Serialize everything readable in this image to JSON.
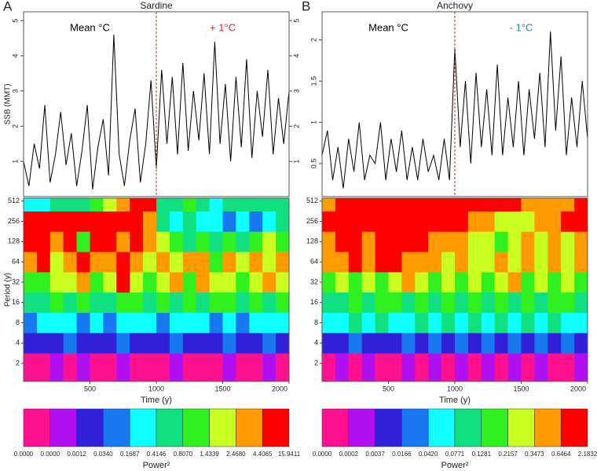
{
  "chart_data": [
    {
      "type": "line",
      "panel": "A",
      "title": "Sardine",
      "ylabel": "SSB (MMT)",
      "color": "#000000",
      "shift_x": 1000,
      "shift_color": "#d02020",
      "mirror_ticks": true,
      "annotations": [
        {
          "text": "Mean °C",
          "color": "#000000"
        },
        {
          "text": "+ 1°C",
          "color": "#e02020"
        }
      ],
      "xlim": [
        0,
        2000
      ],
      "ylim": [
        0,
        5.25
      ],
      "yticks": [
        1,
        2,
        3,
        4,
        5
      ],
      "x": [
        0,
        40,
        80,
        120,
        160,
        200,
        240,
        280,
        320,
        360,
        400,
        440,
        480,
        520,
        560,
        600,
        640,
        680,
        720,
        760,
        800,
        840,
        880,
        920,
        960,
        1000,
        1040,
        1080,
        1120,
        1160,
        1200,
        1240,
        1280,
        1320,
        1360,
        1400,
        1440,
        1480,
        1520,
        1560,
        1600,
        1640,
        1680,
        1720,
        1760,
        1800,
        1840,
        1880,
        1920,
        1960,
        2000
      ],
      "values": [
        1.0,
        0.3,
        1.5,
        0.8,
        2.6,
        0.4,
        1.2,
        2.4,
        0.9,
        1.8,
        0.3,
        1.3,
        2.6,
        0.2,
        1.4,
        2.2,
        0.6,
        4.6,
        1.2,
        0.3,
        1.6,
        2.5,
        0.4,
        1.5,
        3.3,
        0.8,
        3.6,
        1.5,
        3.4,
        1.2,
        3.8,
        1.3,
        3.0,
        1.6,
        3.5,
        1.2,
        4.4,
        1.5,
        3.2,
        1.0,
        3.4,
        1.4,
        3.9,
        1.1,
        3.0,
        1.7,
        3.6,
        1.2,
        2.8,
        1.5,
        3.0
      ]
    },
    {
      "type": "heatmap",
      "ylabel": "Period (y)",
      "xlabel": "Time (y)",
      "log_y": true,
      "xlim": [
        0,
        2000
      ],
      "xticks": [
        500,
        1000,
        1500,
        2000
      ],
      "ylim": [
        1.08,
        566
      ],
      "yticks": [
        2,
        4,
        8,
        16,
        32,
        64,
        128,
        256,
        512
      ],
      "xbins": [
        0,
        100,
        200,
        300,
        400,
        500,
        600,
        700,
        800,
        900,
        1000,
        1100,
        1200,
        1300,
        1400,
        1500,
        1600,
        1700,
        1800,
        1900,
        2000
      ],
      "periods": [
        2,
        4,
        8,
        16,
        32,
        64,
        128,
        256,
        512
      ],
      "colors": [
        "#ff1090",
        "#b010f0",
        "#3020d8",
        "#1878f0",
        "#10ffff",
        "#10e080",
        "#30f020",
        "#c8ff20",
        "#ff9a00",
        "#ff0000"
      ],
      "colorbar_label": "Power²",
      "colorbar_ticks": [
        {
          "value": 0,
          "label": "0.0000"
        },
        {
          "value": 0,
          "label": "0.0000"
        },
        0.0012,
        {
          "value": 0.034,
          "label": "0.0340"
        },
        0.1687,
        0.4146,
        {
          "value": 0.807,
          "label": "0.8070"
        },
        1.4339,
        {
          "value": 2.468,
          "label": "2.4680"
        },
        4.4065,
        15.9411
      ],
      "power": [
        [
          0,
          0,
          0.0006,
          0,
          0.0006,
          0,
          0,
          0.0006,
          0,
          0,
          0,
          0.0006,
          0,
          0,
          0,
          0.0006,
          0,
          0,
          0.0006,
          0
        ],
        [
          0.02,
          0.02,
          0.02,
          0.1,
          0.02,
          0.02,
          0.02,
          0.1,
          0.02,
          0.02,
          0.02,
          0.1,
          0.02,
          0.02,
          0.02,
          0.1,
          0.02,
          0.02,
          0.1,
          0.02
        ],
        [
          0.1,
          0.3,
          0.3,
          0.3,
          0.1,
          0.3,
          0.1,
          0.3,
          0.3,
          0.3,
          0.1,
          0.3,
          0.3,
          0.3,
          0.1,
          0.3,
          0.1,
          0.3,
          0.3,
          0.3
        ],
        [
          0.6,
          0.6,
          1.1,
          0.6,
          1.1,
          0.6,
          0.6,
          1.1,
          1.1,
          0.6,
          1.1,
          0.6,
          1.1,
          0.6,
          1.1,
          1.1,
          0.6,
          1.1,
          0.6,
          1.1
        ],
        [
          1.1,
          1.1,
          2,
          2,
          3,
          1.1,
          2,
          8,
          2,
          1.1,
          2,
          3,
          1.1,
          3,
          2,
          2,
          1.1,
          2,
          3,
          2
        ],
        [
          3,
          8,
          2,
          3,
          8,
          3,
          3,
          8,
          3,
          2,
          3,
          2,
          3,
          3,
          1.1,
          3,
          2,
          3,
          2,
          3
        ],
        [
          8,
          8,
          3,
          8,
          1.1,
          8,
          8,
          3,
          8,
          3,
          2,
          1.1,
          0.6,
          1.1,
          0.6,
          1.1,
          0.6,
          1.1,
          2,
          1.1
        ],
        [
          8,
          8,
          8,
          8,
          8,
          8,
          8,
          8,
          8,
          3,
          0.6,
          0.3,
          0.6,
          0.3,
          0.3,
          0.1,
          0.3,
          0.1,
          0.3,
          0.6
        ],
        [
          0.3,
          0.3,
          0.6,
          0.6,
          0.6,
          1.1,
          2,
          3,
          8,
          8,
          0.6,
          0.6,
          1.1,
          0.6,
          0.3,
          0.6,
          0.6,
          0.6,
          0.6,
          0.6
        ]
      ]
    },
    {
      "type": "line",
      "panel": "B",
      "title": "Anchovy",
      "color": "#000000",
      "shift_x": 1000,
      "shift_color": "#d02020",
      "mirror_ticks": false,
      "annotations": [
        {
          "text": "Mean °C",
          "color": "#000000"
        },
        {
          "text": "- 1°C",
          "color": "#2a7fc0"
        }
      ],
      "xlim": [
        0,
        2000
      ],
      "ylim": [
        0.1,
        2.34
      ],
      "yticks": [
        0.5,
        1.0,
        1.5,
        2.0
      ],
      "x": [
        0,
        40,
        80,
        120,
        160,
        200,
        240,
        280,
        320,
        360,
        400,
        440,
        480,
        520,
        560,
        600,
        640,
        680,
        720,
        760,
        800,
        840,
        880,
        920,
        960,
        1000,
        1040,
        1080,
        1120,
        1160,
        1200,
        1240,
        1280,
        1320,
        1360,
        1400,
        1440,
        1480,
        1520,
        1560,
        1600,
        1640,
        1680,
        1720,
        1760,
        1800,
        1840,
        1880,
        1920,
        1960,
        2000
      ],
      "values": [
        0.6,
        0.9,
        0.3,
        0.7,
        0.2,
        0.8,
        0.4,
        1.0,
        0.3,
        0.6,
        0.5,
        1.0,
        0.3,
        0.8,
        0.4,
        0.9,
        0.3,
        0.7,
        0.3,
        0.8,
        0.4,
        0.6,
        0.3,
        0.8,
        0.3,
        1.9,
        0.7,
        1.5,
        0.5,
        1.6,
        0.7,
        1.4,
        0.6,
        1.7,
        0.6,
        1.3,
        0.7,
        1.5,
        0.6,
        1.4,
        0.8,
        1.6,
        0.7,
        2.1,
        0.9,
        1.8,
        0.6,
        1.3,
        0.7,
        1.5,
        0.8
      ]
    },
    {
      "type": "heatmap",
      "xlabel": "Time (y)",
      "log_y": true,
      "xlim": [
        0,
        2000
      ],
      "xticks": [
        500,
        1000,
        1500,
        2000
      ],
      "ylim": [
        1.08,
        566
      ],
      "yticks": [
        2,
        4,
        8,
        16,
        32,
        64,
        128,
        256,
        512
      ],
      "xbins": [
        0,
        100,
        200,
        300,
        400,
        500,
        600,
        700,
        800,
        900,
        1000,
        1100,
        1200,
        1300,
        1400,
        1500,
        1600,
        1700,
        1800,
        1900,
        2000
      ],
      "periods": [
        2,
        4,
        8,
        16,
        32,
        64,
        128,
        256,
        512
      ],
      "colors": [
        "#ff1090",
        "#b010f0",
        "#3020d8",
        "#1878f0",
        "#10ffff",
        "#10e080",
        "#30f020",
        "#c8ff20",
        "#ff9a00",
        "#ff0000"
      ],
      "colorbar_label": "Power²",
      "colorbar_ticks": [
        {
          "value": 0,
          "label": "0.0000"
        },
        0.0002,
        0.0037,
        0.0166,
        {
          "value": 0.042,
          "label": "0.0420"
        },
        0.0771,
        0.1281,
        0.2157,
        0.3473,
        0.6464,
        2.1832
      ],
      "power": [
        [
          0.0001,
          0.001,
          0.0001,
          0.001,
          0.0001,
          0.0001,
          0.001,
          0.0001,
          0.001,
          0.0001,
          0.001,
          0.0001,
          0.001,
          0.0001,
          0.001,
          0.0001,
          0.001,
          0.0001,
          0.0001,
          0.001
        ],
        [
          0.01,
          0.01,
          0.03,
          0.01,
          0.01,
          0.01,
          0.03,
          0.01,
          0.03,
          0.01,
          0.03,
          0.01,
          0.03,
          0.01,
          0.03,
          0.01,
          0.03,
          0.01,
          0.03,
          0.01
        ],
        [
          0.06,
          0.06,
          0.1,
          0.06,
          0.1,
          0.06,
          0.06,
          0.1,
          0.06,
          0.1,
          0.06,
          0.1,
          0.06,
          0.1,
          0.06,
          0.1,
          0.06,
          0.1,
          0.06,
          0.06
        ],
        [
          0.1,
          0.1,
          0.17,
          0.1,
          0.17,
          0.17,
          0.1,
          0.17,
          0.1,
          0.17,
          0.1,
          0.17,
          0.1,
          0.17,
          0.1,
          0.17,
          0.1,
          0.17,
          0.17,
          0.1
        ],
        [
          0.17,
          0.28,
          0.17,
          0.28,
          0.17,
          0.28,
          0.5,
          0.28,
          0.17,
          0.28,
          0.17,
          0.28,
          0.17,
          0.28,
          0.5,
          0.17,
          0.28,
          0.17,
          0.28,
          0.17
        ],
        [
          0.5,
          0.5,
          1,
          0.5,
          1,
          1,
          0.5,
          0.5,
          0.5,
          0.28,
          0.5,
          0.28,
          0.28,
          0.5,
          0.28,
          0.5,
          0.28,
          0.5,
          0.28,
          0.5
        ],
        [
          0.5,
          1,
          1,
          0.5,
          1,
          1,
          1,
          1,
          0.5,
          0.5,
          0.5,
          0.28,
          0.28,
          0.17,
          0.28,
          0.5,
          0.28,
          0.5,
          0.28,
          0.5
        ],
        [
          1,
          1,
          1,
          1,
          1,
          1,
          1,
          1,
          1,
          1,
          1,
          0.5,
          0.5,
          0.28,
          0.28,
          0.28,
          0.5,
          0.5,
          1,
          1
        ],
        [
          0.5,
          1,
          1,
          1,
          1,
          1,
          1,
          1,
          1,
          1,
          1,
          1,
          1,
          1,
          1,
          0.5,
          0.5,
          0.5,
          0.5,
          1
        ]
      ]
    }
  ]
}
